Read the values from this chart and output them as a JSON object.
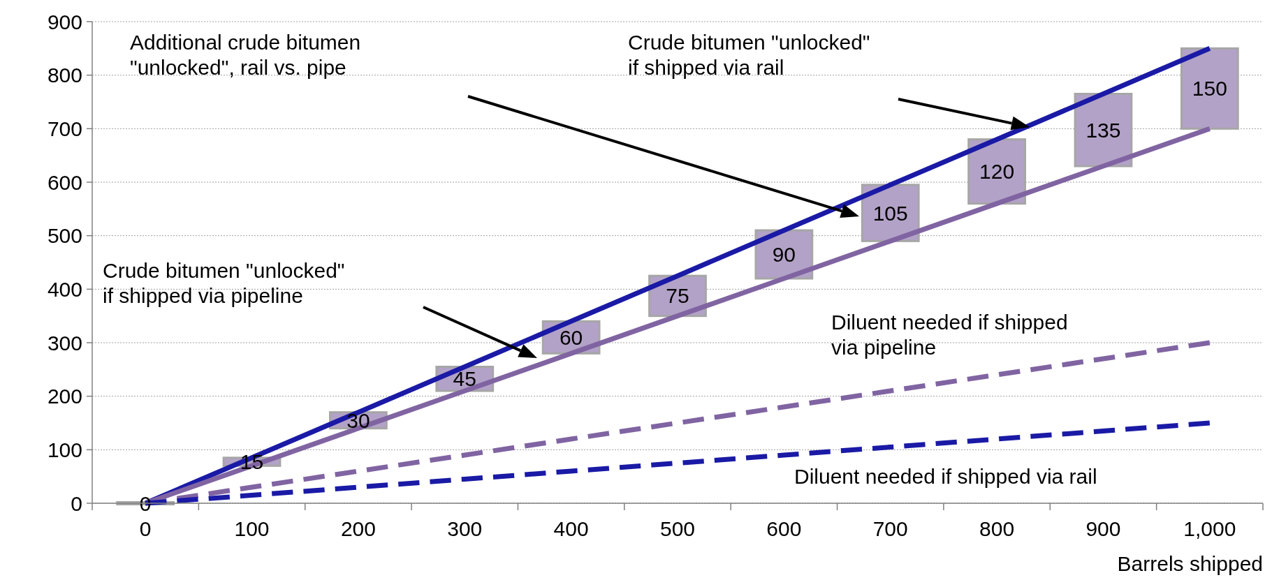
{
  "chart_data": {
    "type": "line",
    "categories": [
      "0",
      "100",
      "200",
      "300",
      "400",
      "500",
      "600",
      "700",
      "800",
      "900",
      "1,000"
    ],
    "xlabel": "Barrels shipped",
    "ylim": [
      0,
      900
    ],
    "yticks": [
      0,
      100,
      200,
      300,
      400,
      500,
      600,
      700,
      800,
      900
    ],
    "grid": "y",
    "series": [
      {
        "type": "bar",
        "color": "#b3a2c7",
        "base": [
          0,
          70,
          140,
          210,
          280,
          350,
          420,
          490,
          560,
          630,
          700
        ],
        "values": [
          0,
          15,
          30,
          45,
          60,
          75,
          90,
          105,
          120,
          135,
          150
        ],
        "data_labels": true
      },
      {
        "color": "#1a1aa6",
        "line_style": "solid",
        "values": [
          0,
          85,
          170,
          255,
          340,
          425,
          510,
          595,
          680,
          765,
          850
        ]
      },
      {
        "color": "#8064a2",
        "line_style": "solid",
        "values": [
          0,
          70,
          140,
          210,
          280,
          350,
          420,
          490,
          560,
          630,
          700
        ]
      },
      {
        "color": "#8064a2",
        "line_style": "dashed",
        "values": [
          0,
          30,
          60,
          90,
          120,
          150,
          180,
          210,
          240,
          270,
          300
        ]
      },
      {
        "color": "#1a1aa6",
        "line_style": "dashed",
        "values": [
          0,
          15,
          30,
          45,
          60,
          75,
          90,
          105,
          120,
          135,
          150
        ]
      }
    ],
    "annotations": [
      "Additional crude bitumen \"unlocked\", rail vs. pipe",
      "Crude bitumen \"unlocked\" if shipped via rail",
      "Crude bitumen \"unlocked\" if shipped via pipeline",
      "Diluent needed if shipped via pipeline",
      "Diluent needed if shipped via rail"
    ]
  }
}
